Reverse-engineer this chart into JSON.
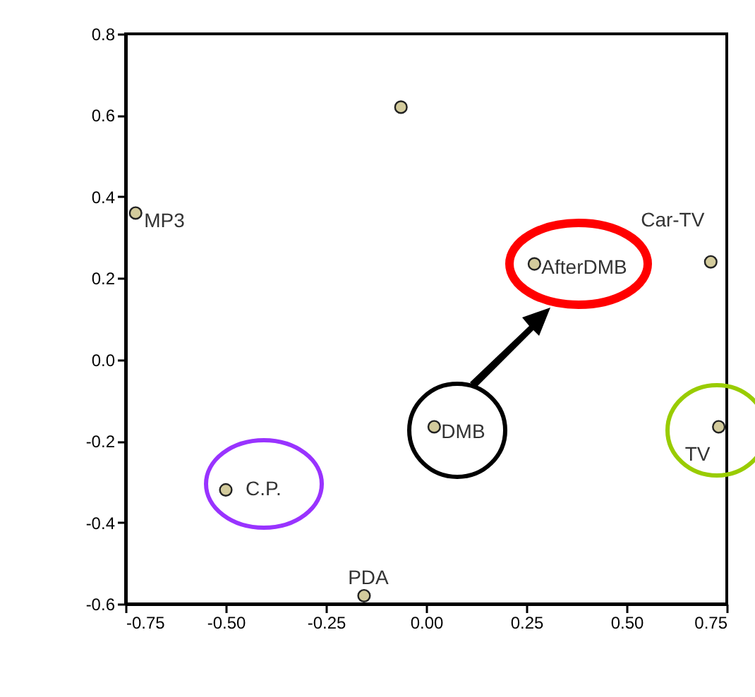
{
  "chart_data": {
    "type": "scatter",
    "x": [
      -0.063,
      -0.725,
      0.27,
      0.71,
      0.02,
      0.73,
      -0.5,
      -0.155
    ],
    "series": [
      {
        "color": "#d3cb9c",
        "values": [
          0.62,
          0.36,
          0.235,
          0.24,
          -0.165,
          -0.165,
          -0.32,
          -0.58
        ]
      }
    ],
    "annotations": [
      {
        "text": "MP3",
        "x": -0.725,
        "y": 0.36
      },
      {
        "text": "AfterDMB",
        "x": 0.27,
        "y": 0.235
      },
      {
        "text": "Car-TV",
        "x": 0.71,
        "y": 0.24
      },
      {
        "text": "DMB",
        "x": 0.02,
        "y": -0.165
      },
      {
        "text": "TV",
        "x": 0.73,
        "y": -0.165
      },
      {
        "text": "C.P.",
        "x": -0.5,
        "y": -0.32
      },
      {
        "text": "PDA",
        "x": -0.155,
        "y": -0.58
      }
    ],
    "xlim": [
      -0.75,
      0.75
    ],
    "xticks": [
      {
        "value": -0.75,
        "label": "-0.75"
      },
      {
        "value": -0.5,
        "label": "-0.50"
      },
      {
        "value": -0.25,
        "label": "-0.25"
      },
      {
        "value": 0,
        "label": "0.00"
      },
      {
        "value": 0.25,
        "label": "0.25"
      },
      {
        "value": 0.5,
        "label": "0.50"
      },
      {
        "value": 0.75,
        "label": "0.75"
      }
    ],
    "ylim": [
      -0.6,
      0.8
    ],
    "yticks": [
      -0.6,
      -0.4,
      -0.2,
      {
        "value": 0,
        "label": "0.0"
      },
      0.2,
      0.4,
      0.6,
      0.8
    ],
    "grid": false,
    "marker": "circle"
  }
}
